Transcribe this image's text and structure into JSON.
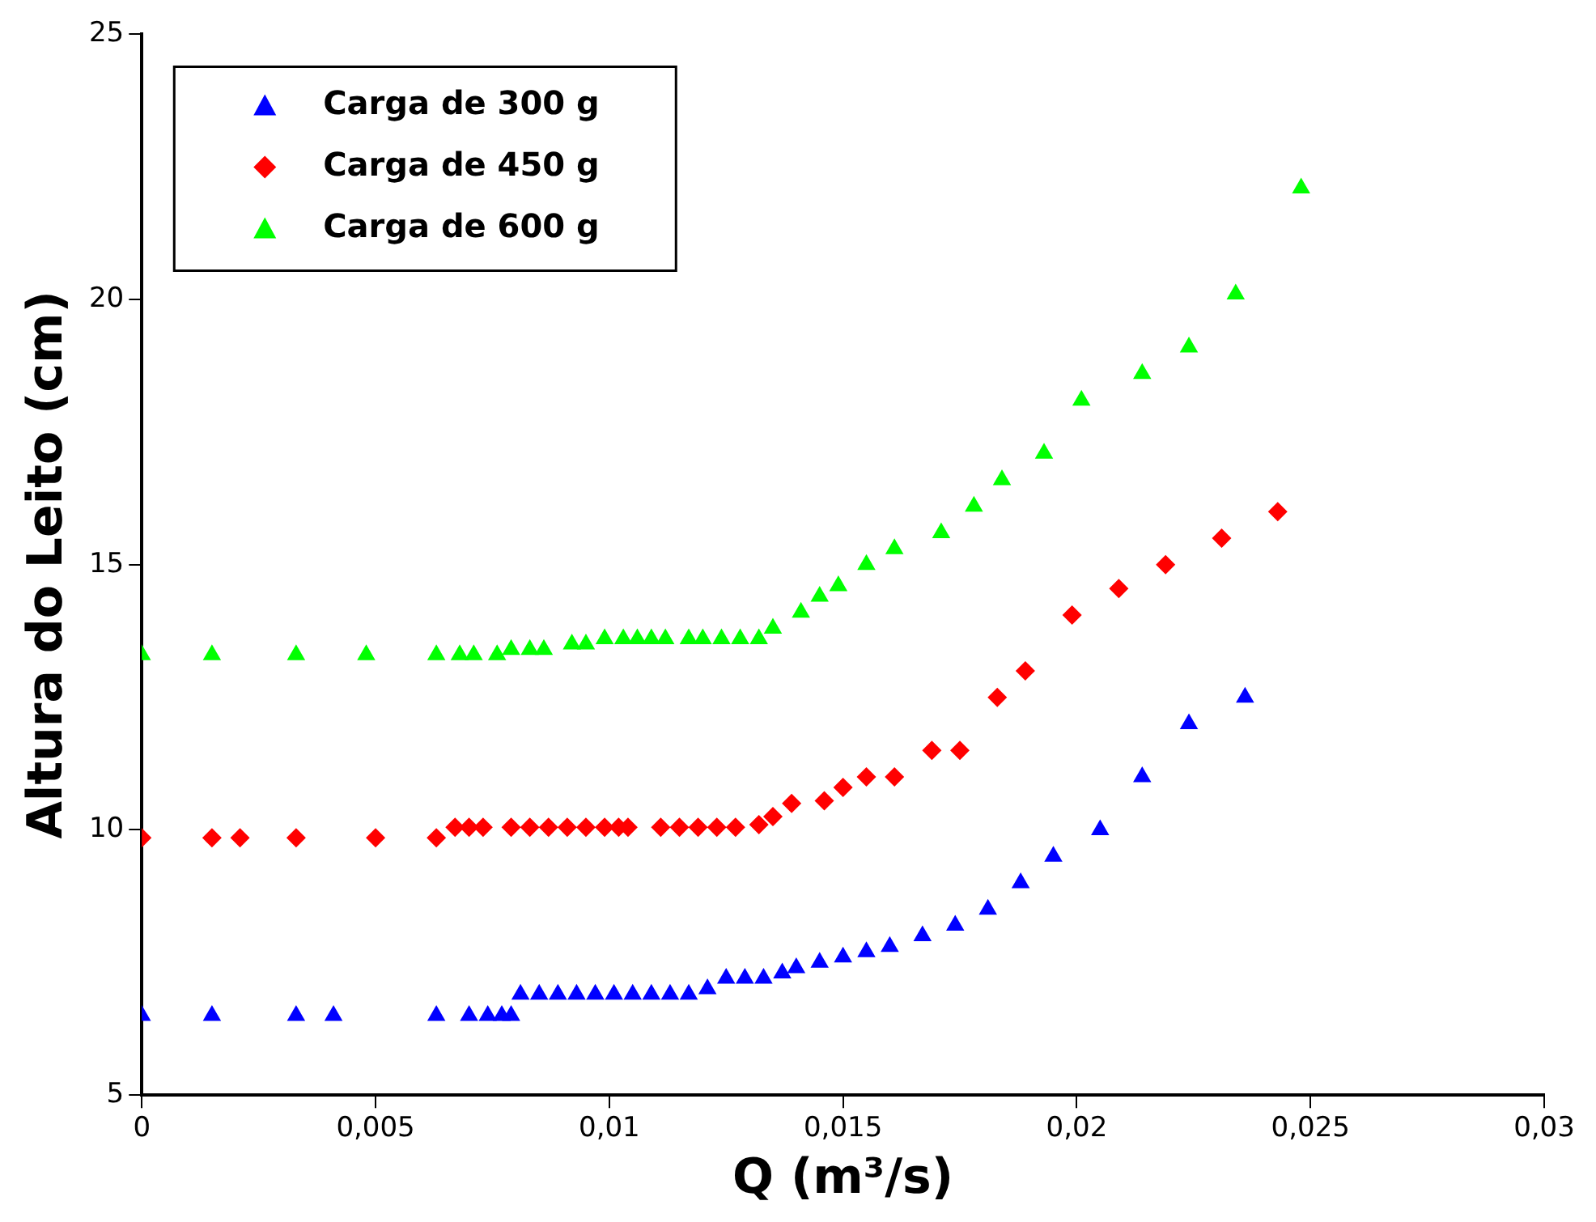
{
  "chart_data": {
    "type": "scatter",
    "xlabel": "Q (m³/s)",
    "ylabel": "Altura do Leito (cm)",
    "xlim": [
      0,
      0.03
    ],
    "ylim": [
      5,
      25
    ],
    "xticks": [
      0,
      {
        "value": 0.005,
        "label": "0,005"
      },
      {
        "value": 0.01,
        "label": "0,01"
      },
      {
        "value": 0.015,
        "label": "0,015"
      },
      {
        "value": 0.02,
        "label": "0,02"
      },
      {
        "value": 0.025,
        "label": "0,025"
      },
      {
        "value": 0.03,
        "label": "0,03"
      }
    ],
    "yticks": [
      5,
      10,
      15,
      20,
      25
    ],
    "grid": false,
    "legend": "top left",
    "series": [
      {
        "name": "Carga de 300 g",
        "color": "#0000ff",
        "marker": "triangle",
        "x": [
          0,
          0.0015,
          0.0033,
          0.0041,
          0.0063,
          0.007,
          0.0074,
          0.0077,
          0.0079,
          0.0081,
          0.0085,
          0.0089,
          0.0093,
          0.0097,
          0.0101,
          0.0105,
          0.0109,
          0.0113,
          0.0117,
          0.0121,
          0.0125,
          0.0129,
          0.0133,
          0.0137,
          0.014,
          0.0145,
          0.015,
          0.0155,
          0.016,
          0.0167,
          0.0174,
          0.0181,
          0.0188,
          0.0195,
          0.0205,
          0.0214,
          0.0224,
          0.0236
        ],
        "values": [
          6.5,
          6.5,
          6.5,
          6.5,
          6.5,
          6.5,
          6.5,
          6.5,
          6.5,
          6.9,
          6.9,
          6.9,
          6.9,
          6.9,
          6.9,
          6.9,
          6.9,
          6.9,
          6.9,
          7.0,
          7.2,
          7.2,
          7.2,
          7.3,
          7.4,
          7.5,
          7.6,
          7.7,
          7.8,
          8.0,
          8.2,
          8.5,
          9.0,
          9.5,
          10.0,
          11.0,
          12.0,
          12.5
        ]
      },
      {
        "name": "Carga de 450 g",
        "color": "#ff0000",
        "marker": "diamond",
        "x": [
          0,
          0.0015,
          0.0021,
          0.0033,
          0.005,
          0.0063,
          0.0067,
          0.007,
          0.0073,
          0.0079,
          0.0083,
          0.0087,
          0.0091,
          0.0095,
          0.0099,
          0.0102,
          0.0104,
          0.0111,
          0.0115,
          0.0119,
          0.0123,
          0.0127,
          0.0132,
          0.0135,
          0.0139,
          0.0146,
          0.015,
          0.0155,
          0.0161,
          0.0169,
          0.0175,
          0.0183,
          0.0189,
          0.0199,
          0.0209,
          0.0219,
          0.0231,
          0.0243
        ],
        "values": [
          9.85,
          9.85,
          9.85,
          9.85,
          9.85,
          9.85,
          10.05,
          10.05,
          10.05,
          10.05,
          10.05,
          10.05,
          10.05,
          10.05,
          10.05,
          10.05,
          10.05,
          10.05,
          10.05,
          10.05,
          10.05,
          10.05,
          10.1,
          10.25,
          10.5,
          10.55,
          10.8,
          11.0,
          11.0,
          11.5,
          11.5,
          12.5,
          13.0,
          14.05,
          14.55,
          15.0,
          15.5,
          16.0
        ]
      },
      {
        "name": "Carga de 600 g",
        "color": "#00ff00",
        "marker": "triangle",
        "x": [
          0,
          0.0015,
          0.0033,
          0.0048,
          0.0063,
          0.0068,
          0.0071,
          0.0076,
          0.0079,
          0.0083,
          0.0086,
          0.0092,
          0.0095,
          0.0099,
          0.0103,
          0.0106,
          0.0109,
          0.0112,
          0.0117,
          0.012,
          0.0124,
          0.0128,
          0.0132,
          0.0135,
          0.0141,
          0.0145,
          0.0149,
          0.0155,
          0.0161,
          0.0171,
          0.0178,
          0.0184,
          0.0193,
          0.0201,
          0.0214,
          0.0224,
          0.0234,
          0.0248
        ],
        "values": [
          13.3,
          13.3,
          13.3,
          13.3,
          13.3,
          13.3,
          13.3,
          13.3,
          13.4,
          13.4,
          13.4,
          13.5,
          13.5,
          13.6,
          13.6,
          13.6,
          13.6,
          13.6,
          13.6,
          13.6,
          13.6,
          13.6,
          13.6,
          13.8,
          14.1,
          14.4,
          14.6,
          15.0,
          15.3,
          15.6,
          16.1,
          16.6,
          17.1,
          18.1,
          18.6,
          19.1,
          20.1,
          22.1
        ]
      }
    ]
  }
}
